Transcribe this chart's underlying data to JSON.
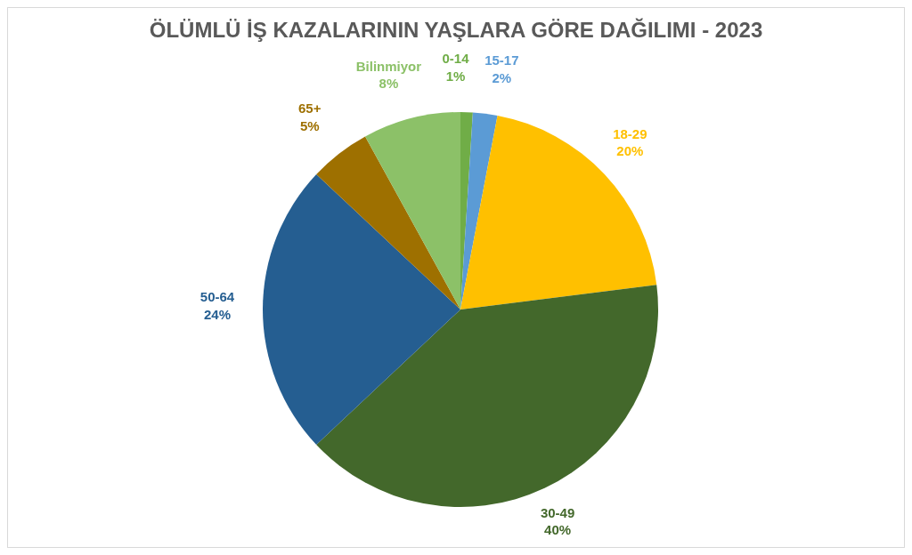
{
  "chart_data": {
    "type": "pie",
    "title": "ÖLÜMLÜ İŞ KAZALARININ YAŞLARA GÖRE DAĞILIMI - 2023",
    "categories": [
      "0-14",
      "15-17",
      "18-29",
      "30-49",
      "50-64",
      "65+",
      "Bilinmiyor"
    ],
    "values": [
      1,
      2,
      20,
      40,
      24,
      5,
      8
    ],
    "value_labels": [
      "1%",
      "2%",
      "20%",
      "40%",
      "24%",
      "5%",
      "8%"
    ],
    "colors": [
      "#70ad47",
      "#5b9bd5",
      "#ffc000",
      "#43682b",
      "#255e91",
      "#9e7000",
      "#8cc168"
    ]
  }
}
